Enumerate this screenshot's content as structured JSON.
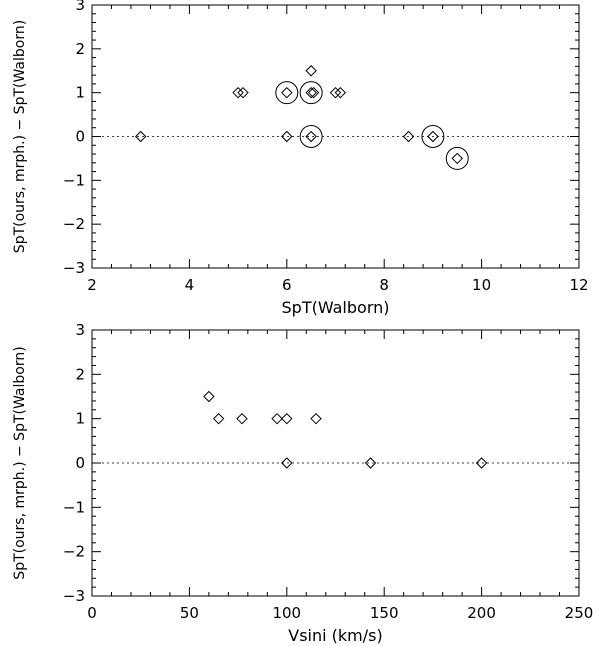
{
  "chart_data": [
    {
      "type": "scatter",
      "xlabel": "SpT(Walborn)",
      "ylabel": "SpT(ours, mrph.) − SpT(Walborn)",
      "xlim": [
        2,
        12
      ],
      "ylim": [
        -3,
        3
      ],
      "xticks": [
        "2",
        "4",
        "6",
        "8",
        "10",
        "12"
      ],
      "yticks": [
        "−3",
        "−2",
        "−1",
        "0",
        "1",
        "2",
        "3"
      ],
      "reference_line": {
        "y": 0,
        "style": "dotted"
      },
      "grid": false,
      "series": [
        {
          "marker": "diamond",
          "points": [
            {
              "x": 3.0,
              "y": 0
            },
            {
              "x": 5.0,
              "y": 1
            },
            {
              "x": 5.1,
              "y": 1
            },
            {
              "x": 6.0,
              "y": 1
            },
            {
              "x": 6.0,
              "y": 0
            },
            {
              "x": 6.5,
              "y": 1.5
            },
            {
              "x": 6.5,
              "y": 1
            },
            {
              "x": 6.55,
              "y": 1
            },
            {
              "x": 6.5,
              "y": 0
            },
            {
              "x": 7.0,
              "y": 1
            },
            {
              "x": 7.1,
              "y": 1
            },
            {
              "x": 8.5,
              "y": 0
            },
            {
              "x": 9.0,
              "y": 0
            },
            {
              "x": 9.5,
              "y": -0.5
            }
          ]
        },
        {
          "marker": "circle",
          "points": [
            {
              "x": 6.0,
              "y": 1
            },
            {
              "x": 6.5,
              "y": 1
            },
            {
              "x": 6.5,
              "y": 0
            },
            {
              "x": 9.0,
              "y": 0
            },
            {
              "x": 9.5,
              "y": -0.5
            }
          ]
        }
      ]
    },
    {
      "type": "scatter",
      "xlabel": "Vsini (km/s)",
      "ylabel": "SpT(ours, mrph.) − SpT(Walborn)",
      "xlim": [
        0,
        250
      ],
      "ylim": [
        -3,
        3
      ],
      "xticks": [
        "0",
        "50",
        "100",
        "150",
        "200",
        "250"
      ],
      "yticks": [
        "−3",
        "−2",
        "−1",
        "0",
        "1",
        "2",
        "3"
      ],
      "reference_line": {
        "y": 0,
        "style": "dotted"
      },
      "grid": false,
      "series": [
        {
          "marker": "diamond",
          "points": [
            {
              "x": 60,
              "y": 1.5
            },
            {
              "x": 65,
              "y": 1
            },
            {
              "x": 77,
              "y": 1
            },
            {
              "x": 95,
              "y": 1
            },
            {
              "x": 100,
              "y": 1
            },
            {
              "x": 115,
              "y": 1
            },
            {
              "x": 100,
              "y": 0
            },
            {
              "x": 143,
              "y": 0
            },
            {
              "x": 200,
              "y": 0
            }
          ]
        }
      ]
    }
  ]
}
